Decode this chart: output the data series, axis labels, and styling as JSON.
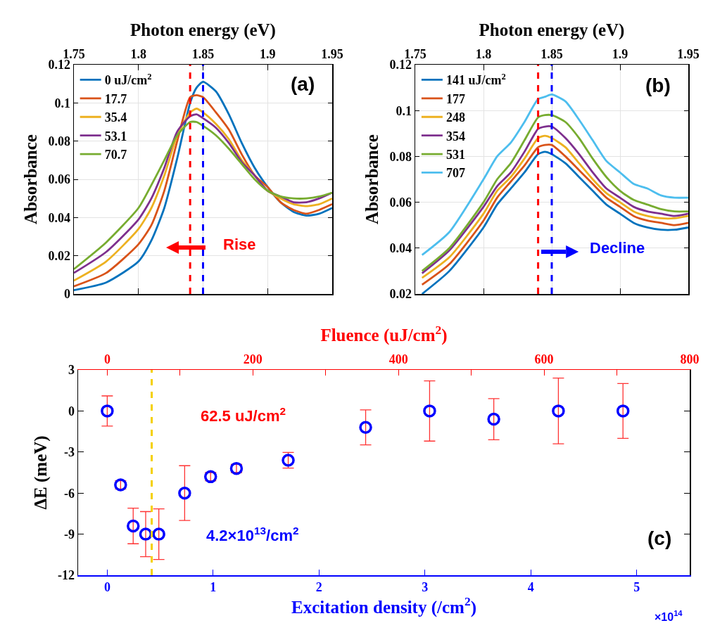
{
  "chart_data": [
    {
      "type": "line",
      "xlabel": "Photon energy (eV)",
      "ylabel": "Absorbance",
      "xlim": [
        1.75,
        1.95
      ],
      "xticks": [
        1.75,
        1.8,
        1.85,
        1.9,
        1.95
      ],
      "ylim": [
        0,
        0.12
      ],
      "yticks": [
        0,
        0.02,
        0.04,
        0.06,
        0.08,
        0.1,
        0.12
      ],
      "grid": true,
      "legend": "top left",
      "line_style": "solid",
      "marker": "none",
      "x": [
        1.75,
        1.775,
        1.8,
        1.81,
        1.82,
        1.83,
        1.84,
        1.845,
        1.85,
        1.86,
        1.87,
        1.88,
        1.89,
        1.9,
        1.91,
        1.92,
        1.93,
        1.94,
        1.95
      ],
      "series": [
        {
          "name": "0 uJ/cm$^{2}$",
          "color": "#0072bd",
          "values": [
            0.002,
            0.006,
            0.017,
            0.028,
            0.045,
            0.071,
            0.1,
            0.108,
            0.111,
            0.106,
            0.094,
            0.079,
            0.066,
            0.056,
            0.048,
            0.043,
            0.041,
            0.042,
            0.045
          ]
        },
        {
          "name": "17.7",
          "color": "#d95319",
          "values": [
            0.004,
            0.011,
            0.026,
            0.036,
            0.054,
            0.08,
            0.103,
            0.104,
            0.103,
            0.095,
            0.086,
            0.073,
            0.062,
            0.056,
            0.048,
            0.044,
            0.042,
            0.044,
            0.047
          ]
        },
        {
          "name": "35.4",
          "color": "#edb120",
          "values": [
            0.007,
            0.017,
            0.034,
            0.045,
            0.062,
            0.083,
            0.095,
            0.097,
            0.095,
            0.089,
            0.081,
            0.07,
            0.062,
            0.054,
            0.05,
            0.047,
            0.046,
            0.047,
            0.05
          ]
        },
        {
          "name": "53.1",
          "color": "#7e2f8e",
          "values": [
            0.011,
            0.022,
            0.039,
            0.05,
            0.066,
            0.085,
            0.093,
            0.094,
            0.092,
            0.087,
            0.079,
            0.069,
            0.062,
            0.054,
            0.051,
            0.048,
            0.048,
            0.05,
            0.053
          ]
        },
        {
          "name": "70.7",
          "color": "#77ac30",
          "values": [
            0.013,
            0.027,
            0.045,
            0.057,
            0.07,
            0.083,
            0.09,
            0.09,
            0.088,
            0.083,
            0.076,
            0.068,
            0.06,
            0.054,
            0.051,
            0.05,
            0.05,
            0.051,
            0.053
          ]
        }
      ],
      "ref_lines": [
        {
          "axis": "x",
          "value": 1.84,
          "color": "#ff0000",
          "line_style": "dashed"
        },
        {
          "axis": "x",
          "value": 1.85,
          "color": "#0000ff",
          "line_style": "dashed"
        }
      ],
      "annotations": [
        "(a)",
        "Rise"
      ]
    },
    {
      "type": "line",
      "xlabel": "Photon energy (eV)",
      "ylabel": "Absorbance",
      "xlim": [
        1.75,
        1.95
      ],
      "xticks": [
        1.75,
        1.8,
        1.85,
        1.9,
        1.95
      ],
      "ylim": [
        0.02,
        0.12
      ],
      "yticks": [
        0.02,
        0.04,
        0.06,
        0.08,
        0.1,
        0.12
      ],
      "grid": true,
      "legend": "top left",
      "line_style": "solid",
      "marker": "none",
      "x": [
        1.755,
        1.775,
        1.8,
        1.81,
        1.82,
        1.83,
        1.84,
        1.845,
        1.85,
        1.86,
        1.87,
        1.88,
        1.89,
        1.9,
        1.91,
        1.92,
        1.93,
        1.94,
        1.95
      ],
      "series": [
        {
          "name": "141 uJ/cm$^{2}$",
          "color": "#0072bd",
          "values": [
            0.02,
            0.03,
            0.049,
            0.059,
            0.066,
            0.073,
            0.081,
            0.082,
            0.081,
            0.077,
            0.071,
            0.065,
            0.059,
            0.055,
            0.051,
            0.049,
            0.048,
            0.048,
            0.049
          ]
        },
        {
          "name": "177",
          "color": "#d95319",
          "values": [
            0.024,
            0.033,
            0.052,
            0.062,
            0.069,
            0.076,
            0.084,
            0.085,
            0.085,
            0.08,
            0.074,
            0.068,
            0.062,
            0.058,
            0.054,
            0.052,
            0.051,
            0.05,
            0.051
          ]
        },
        {
          "name": "248",
          "color": "#edb120",
          "values": [
            0.027,
            0.036,
            0.055,
            0.065,
            0.071,
            0.079,
            0.088,
            0.089,
            0.088,
            0.084,
            0.077,
            0.07,
            0.064,
            0.06,
            0.056,
            0.054,
            0.053,
            0.053,
            0.054
          ]
        },
        {
          "name": "354",
          "color": "#7e2f8e",
          "values": [
            0.029,
            0.039,
            0.058,
            0.067,
            0.073,
            0.082,
            0.092,
            0.093,
            0.093,
            0.088,
            0.081,
            0.073,
            0.066,
            0.062,
            0.058,
            0.056,
            0.055,
            0.054,
            0.055
          ]
        },
        {
          "name": "531",
          "color": "#77ac30",
          "values": [
            0.03,
            0.04,
            0.06,
            0.07,
            0.077,
            0.087,
            0.097,
            0.098,
            0.098,
            0.095,
            0.088,
            0.079,
            0.071,
            0.065,
            0.061,
            0.059,
            0.057,
            0.056,
            0.056
          ]
        },
        {
          "name": "707",
          "color": "#4dbeee",
          "values": [
            0.037,
            0.047,
            0.07,
            0.08,
            0.086,
            0.095,
            0.105,
            0.106,
            0.107,
            0.104,
            0.096,
            0.087,
            0.078,
            0.073,
            0.068,
            0.066,
            0.063,
            0.062,
            0.062
          ]
        }
      ],
      "ref_lines": [
        {
          "axis": "x",
          "value": 1.84,
          "color": "#ff0000",
          "line_style": "dashed"
        },
        {
          "axis": "x",
          "value": 1.85,
          "color": "#0000ff",
          "line_style": "dashed"
        }
      ],
      "annotations": [
        "(b)",
        "Decline"
      ]
    },
    {
      "type": "scatter",
      "xlabel": "Excitation density (/cm$^{2}$)",
      "x2label": "Fluence (uJ/cm$^{2}$)",
      "ylabel": "ΔE (meV)",
      "xlim": [
        -0.275,
        5.5
      ],
      "xticks": [
        0,
        1,
        2,
        3,
        4,
        5
      ],
      "x2lim": [
        -40,
        800
      ],
      "x2ticks": [
        0,
        {
          "value": 100,
          "label": null
        },
        200,
        {
          "value": 300,
          "label": null
        },
        400,
        {
          "value": 500,
          "label": null
        },
        600,
        {
          "value": 700,
          "label": null
        },
        800
      ],
      "ylim": [
        -12,
        3
      ],
      "yticks": [
        -12,
        -9,
        -6,
        -3,
        0,
        3
      ],
      "grid": false,
      "legend": false,
      "marker": "circle",
      "x": [
        0,
        0.126,
        0.245,
        0.363,
        0.487,
        0.731,
        0.976,
        1.22,
        1.709,
        2.44,
        3.044,
        3.65,
        4.26,
        4.87
      ],
      "series": [
        {
          "color": "#0000ff",
          "values": [
            0,
            -5.4,
            -8.4,
            -9,
            -9,
            -6,
            -4.8,
            -4.2,
            -3.6,
            -1.2,
            0,
            -0.6,
            0,
            0
          ],
          "errors": [
            1.1,
            0.3,
            1.3,
            1.65,
            1.85,
            2,
            0.3,
            0.3,
            0.57,
            1.28,
            2.2,
            1.5,
            2.4,
            2
          ]
        }
      ],
      "ref_lines": [
        {
          "axis": "x",
          "value": 0.42,
          "color": "#f5d000",
          "line_style": "dashed"
        }
      ],
      "annotations": [
        "62.5 uJ/cm$^{2}$",
        "4.2×10$^{13}$/cm$^{2}$",
        "(c)",
        "×10$^{14}$"
      ]
    }
  ]
}
